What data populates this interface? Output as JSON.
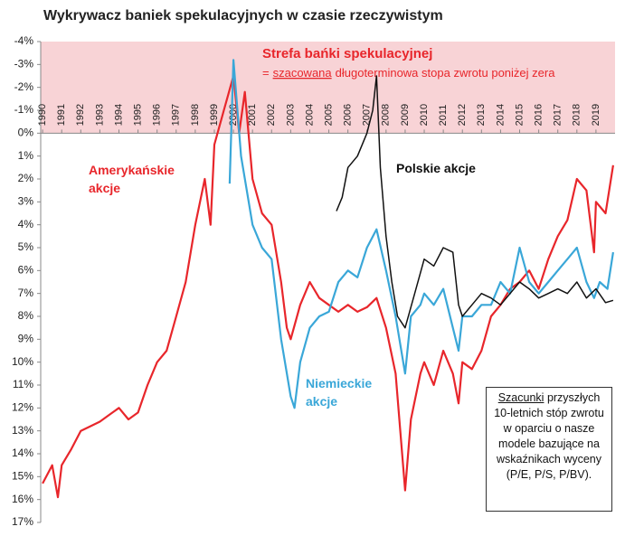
{
  "chart_data": {
    "type": "line",
    "title": "Wykrywacz baniek spekulacyjnych w czasie rzeczywistym",
    "ylim": [
      -4,
      17
    ],
    "y_reversed": true,
    "yticks": [
      {
        "value": -4,
        "label": "-4%"
      },
      {
        "value": -3,
        "label": "-3%"
      },
      {
        "value": -2,
        "label": "-2%"
      },
      {
        "value": -1,
        "label": "-1%"
      },
      {
        "value": 0,
        "label": "0%"
      },
      {
        "value": 1,
        "label": "1%"
      },
      {
        "value": 2,
        "label": "2%"
      },
      {
        "value": 3,
        "label": "3%"
      },
      {
        "value": 4,
        "label": "4%"
      },
      {
        "value": 5,
        "label": "5%"
      },
      {
        "value": 6,
        "label": "6%"
      },
      {
        "value": 7,
        "label": "7%"
      },
      {
        "value": 8,
        "label": "8%"
      },
      {
        "value": 9,
        "label": "9%"
      },
      {
        "value": 10,
        "label": "10%"
      },
      {
        "value": 11,
        "label": "11%"
      },
      {
        "value": 12,
        "label": "12%"
      },
      {
        "value": 13,
        "label": "13%"
      },
      {
        "value": 14,
        "label": "14%"
      },
      {
        "value": 15,
        "label": "15%"
      },
      {
        "value": 16,
        "label": "16%"
      },
      {
        "value": 17,
        "label": "17%"
      }
    ],
    "xlim": [
      1989.9,
      2020.0
    ],
    "xticks": [
      1990,
      1991,
      1992,
      1993,
      1994,
      1995,
      1996,
      1997,
      1998,
      1999,
      2000,
      2001,
      2002,
      2003,
      2004,
      2005,
      2006,
      2007,
      2008,
      2009,
      2010,
      2011,
      2012,
      2013,
      2014,
      2015,
      2016,
      2017,
      2018,
      2019
    ],
    "bubble_zone": {
      "from": -4,
      "to": 0,
      "color": "#f8d3d6",
      "label": "Strefa bańki spekulacyjnej",
      "note": [
        "=",
        "szacowana",
        "długoterminowa stopa zwrotu poniżej zera"
      ]
    },
    "note_box": [
      "Szacunki",
      "przyszłych 10-letnich stóp zwrotu w oparciu o nasze modele bazujące na wskaźnikach wyceny (P/E, P/S, P/BV)."
    ],
    "series": [
      {
        "name": "Amerykańskie akcje",
        "color": "#e8262b",
        "x": [
          1990.0,
          1990.5,
          1990.8,
          1991.0,
          1991.5,
          1992.0,
          1992.5,
          1993.0,
          1993.5,
          1994.0,
          1994.5,
          1995.0,
          1995.5,
          1996.0,
          1996.5,
          1997.0,
          1997.5,
          1998.0,
          1998.5,
          1998.8,
          1999.0,
          1999.5,
          2000.0,
          2000.3,
          2000.6,
          2001.0,
          2001.5,
          2002.0,
          2002.5,
          2002.8,
          2003.0,
          2003.5,
          2004.0,
          2004.5,
          2005.0,
          2005.5,
          2006.0,
          2006.5,
          2007.0,
          2007.5,
          2008.0,
          2008.5,
          2009.0,
          2009.3,
          2009.8,
          2010.0,
          2010.5,
          2011.0,
          2011.5,
          2011.8,
          2012.0,
          2012.5,
          2013.0,
          2013.5,
          2014.0,
          2014.5,
          2015.0,
          2015.5,
          2016.0,
          2016.5,
          2017.0,
          2017.5,
          2018.0,
          2018.5,
          2018.9,
          2019.0,
          2019.5,
          2019.9
        ],
        "values": [
          15.3,
          14.5,
          15.9,
          14.5,
          13.8,
          13.0,
          12.8,
          12.6,
          12.3,
          12.0,
          12.5,
          12.2,
          11.0,
          10.0,
          9.5,
          8.0,
          6.5,
          4.0,
          2.0,
          4.0,
          0.5,
          -1.0,
          -2.5,
          0.0,
          -1.8,
          2.0,
          3.5,
          4.0,
          6.5,
          8.5,
          9.0,
          7.5,
          6.5,
          7.2,
          7.5,
          7.8,
          7.5,
          7.8,
          7.6,
          7.2,
          8.5,
          10.5,
          15.6,
          12.5,
          10.5,
          10.0,
          11.0,
          9.5,
          10.5,
          11.8,
          10.0,
          10.3,
          9.5,
          8.0,
          7.5,
          6.8,
          6.5,
          6.0,
          6.8,
          5.5,
          4.5,
          3.8,
          2.0,
          2.5,
          5.2,
          3.0,
          3.5,
          1.4
        ]
      },
      {
        "name": "Niemieckie akcje",
        "color": "#3aa7d8",
        "x": [
          1999.8,
          2000.0,
          2000.4,
          2001.0,
          2001.5,
          2002.0,
          2002.5,
          2003.0,
          2003.2,
          2003.5,
          2004.0,
          2004.5,
          2005.0,
          2005.5,
          2006.0,
          2006.5,
          2007.0,
          2007.5,
          2008.0,
          2008.5,
          2009.0,
          2009.3,
          2009.8,
          2010.0,
          2010.5,
          2011.0,
          2011.5,
          2011.8,
          2012.0,
          2012.5,
          2013.0,
          2013.5,
          2014.0,
          2014.5,
          2015.0,
          2015.5,
          2016.0,
          2016.5,
          2017.0,
          2017.5,
          2018.0,
          2018.5,
          2018.9,
          2019.2,
          2019.6,
          2019.9
        ],
        "values": [
          2.2,
          -3.2,
          1.0,
          4.0,
          5.0,
          5.5,
          9.0,
          11.5,
          12.0,
          10.0,
          8.5,
          8.0,
          7.8,
          6.5,
          6.0,
          6.3,
          5.0,
          4.2,
          6.0,
          8.0,
          10.5,
          8.0,
          7.5,
          7.0,
          7.5,
          6.8,
          8.5,
          9.5,
          8.0,
          8.0,
          7.5,
          7.5,
          6.5,
          7.0,
          5.0,
          6.5,
          7.0,
          6.5,
          6.0,
          5.5,
          5.0,
          6.5,
          7.2,
          6.5,
          6.8,
          5.2
        ]
      },
      {
        "name": "Polskie akcje",
        "color": "#111111",
        "x": [
          2005.4,
          2005.7,
          2006.0,
          2006.5,
          2007.0,
          2007.3,
          2007.5,
          2007.7,
          2008.0,
          2008.3,
          2008.6,
          2009.0,
          2009.5,
          2010.0,
          2010.5,
          2011.0,
          2011.5,
          2011.8,
          2012.0,
          2012.5,
          2013.0,
          2013.5,
          2014.0,
          2014.5,
          2015.0,
          2015.5,
          2016.0,
          2016.5,
          2017.0,
          2017.5,
          2018.0,
          2018.5,
          2019.0,
          2019.5,
          2019.9
        ],
        "values": [
          3.4,
          2.8,
          1.5,
          1.0,
          0.0,
          -1.0,
          -2.5,
          1.5,
          4.5,
          6.5,
          8.0,
          8.5,
          7.0,
          5.5,
          5.8,
          5.0,
          5.2,
          7.5,
          8.0,
          7.5,
          7.0,
          7.2,
          7.5,
          7.0,
          6.5,
          6.8,
          7.2,
          7.0,
          6.8,
          7.0,
          6.5,
          7.2,
          6.8,
          7.4,
          7.3
        ]
      }
    ]
  }
}
